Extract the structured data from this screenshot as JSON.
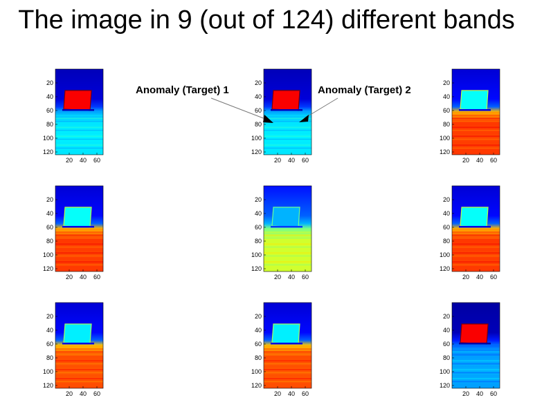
{
  "slide": {
    "title": "The image in 9 (out of 124) different bands"
  },
  "annotations": {
    "target1_label": "Anomaly (Target) 1",
    "target2_label": "Anomaly (Target) 2",
    "arrow_color": "#000000"
  },
  "axes": {
    "y_ticks": [
      "20",
      "40",
      "60",
      "80",
      "100",
      "120"
    ],
    "x_ticks": [
      "20",
      "40",
      "60"
    ]
  },
  "colormap": "jet",
  "colors": {
    "jet_dark_blue": "#00008f",
    "jet_blue": "#0000ff",
    "jet_cyan": "#00ffff",
    "jet_yellow": "#ffff00",
    "jet_red": "#ff0000",
    "jet_dark_red": "#800000"
  },
  "panels": [
    {
      "id": "band-1",
      "sky": 0.08,
      "board": 0.88,
      "ground": 0.35
    },
    {
      "id": "band-2",
      "sky": 0.08,
      "board": 0.88,
      "ground": 0.35
    },
    {
      "id": "band-3",
      "sky": 0.12,
      "board": 0.38,
      "ground": 0.82
    },
    {
      "id": "band-4",
      "sky": 0.12,
      "board": 0.38,
      "ground": 0.82
    },
    {
      "id": "band-5",
      "sky": 0.2,
      "board": 0.3,
      "ground": 0.58
    },
    {
      "id": "band-6",
      "sky": 0.12,
      "board": 0.38,
      "ground": 0.82
    },
    {
      "id": "band-7",
      "sky": 0.12,
      "board": 0.36,
      "ground": 0.8
    },
    {
      "id": "band-8",
      "sky": 0.12,
      "board": 0.36,
      "ground": 0.8
    },
    {
      "id": "band-9",
      "sky": 0.05,
      "board": 0.88,
      "ground": 0.28
    }
  ]
}
